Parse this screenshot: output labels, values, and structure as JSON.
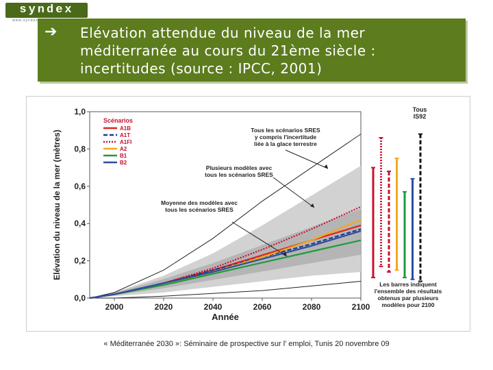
{
  "logo": {
    "text": "syndex",
    "sub": "www.syndex.fr"
  },
  "title": {
    "arrow_icon": "arrow-right-icon",
    "text": "Elévation attendue du niveau de la mer\nméditerranée au cours du 21ème siècle :\nincertitudes (source : IPCC, 2001)"
  },
  "footer": "« Méditerranée 2030 »: Séminaire de prospective sur l’ emploi, Tunis 20 novembre 09",
  "chart_data": {
    "type": "line",
    "xlabel": "Année",
    "ylabel": "Elévation du niveau de la mer (mètres)",
    "xlim": [
      1990,
      2100
    ],
    "ylim": [
      0,
      1.0
    ],
    "xticks": [
      "2000",
      "2020",
      "2040",
      "2060",
      "2080",
      "2100"
    ],
    "yticks": [
      "0,0",
      "0,2",
      "0,4",
      "0,6",
      "0,8",
      "1,0"
    ],
    "x": [
      1990,
      2000,
      2020,
      2040,
      2060,
      2080,
      2100
    ],
    "legend_title": "Scénarios",
    "series": [
      {
        "name": "A1B",
        "color": "#e0221c",
        "dash": "solid",
        "values": [
          0,
          0.02,
          0.08,
          0.15,
          0.23,
          0.31,
          0.39
        ]
      },
      {
        "name": "A1T",
        "color": "#1e3a8a",
        "dash": "dashed",
        "values": [
          0,
          0.02,
          0.08,
          0.15,
          0.22,
          0.29,
          0.37
        ]
      },
      {
        "name": "A1FI",
        "color": "#c8102e",
        "dash": "dotted",
        "values": [
          0,
          0.02,
          0.08,
          0.16,
          0.26,
          0.37,
          0.49
        ]
      },
      {
        "name": "A2",
        "color": "#f2a81d",
        "dash": "solid",
        "values": [
          0,
          0.02,
          0.07,
          0.14,
          0.22,
          0.31,
          0.42
        ]
      },
      {
        "name": "B1",
        "color": "#1f9a3c",
        "dash": "solid",
        "values": [
          0,
          0.02,
          0.07,
          0.13,
          0.19,
          0.25,
          0.31
        ]
      },
      {
        "name": "B2",
        "color": "#2b4ca0",
        "dash": "solid",
        "values": [
          0,
          0.02,
          0.08,
          0.14,
          0.21,
          0.28,
          0.36
        ]
      }
    ],
    "envelope_upper": [
      0,
      0.03,
      0.15,
      0.32,
      0.52,
      0.7,
      0.88
    ],
    "envelope_lower": [
      0,
      0.0,
      0.01,
      0.025,
      0.04,
      0.065,
      0.09
    ],
    "band_upper": [
      0,
      0.03,
      0.12,
      0.24,
      0.39,
      0.55,
      0.71
    ],
    "band_lower": [
      0,
      0.01,
      0.03,
      0.06,
      0.09,
      0.12,
      0.14
    ],
    "bar_heading": "Tous\nIS92",
    "bars": [
      {
        "color": "#c8102e",
        "dash": "solid",
        "low": 0.11,
        "high": 0.7
      },
      {
        "color": "#c8102e",
        "dash": "dotted",
        "low": 0.17,
        "high": 0.86
      },
      {
        "color": "#c8102e",
        "dash": "dashed",
        "low": 0.14,
        "high": 0.68
      },
      {
        "color": "#f2a81d",
        "dash": "solid",
        "low": 0.15,
        "high": 0.75
      },
      {
        "color": "#1f9a3c",
        "dash": "solid",
        "low": 0.11,
        "high": 0.57
      },
      {
        "color": "#2b4ca0",
        "dash": "solid",
        "low": 0.1,
        "high": 0.64
      },
      {
        "color": "#111111",
        "dash": "dashed",
        "low": 0.09,
        "high": 0.88
      }
    ],
    "annotations": [
      {
        "text": "Tous les scénarios SRES\ny compris l'incertitude\nliée à la glace terrestre"
      },
      {
        "text": "Plusieurs modèles avec\ntous les scénarios SRES"
      },
      {
        "text": "Moyenne des modèles avec\ntous les scénarios SRES"
      },
      {
        "text": "Les barres indiquent\nl'ensemble des résultats\nobtenus par plusieurs\nmodèles pour 2100"
      }
    ]
  }
}
